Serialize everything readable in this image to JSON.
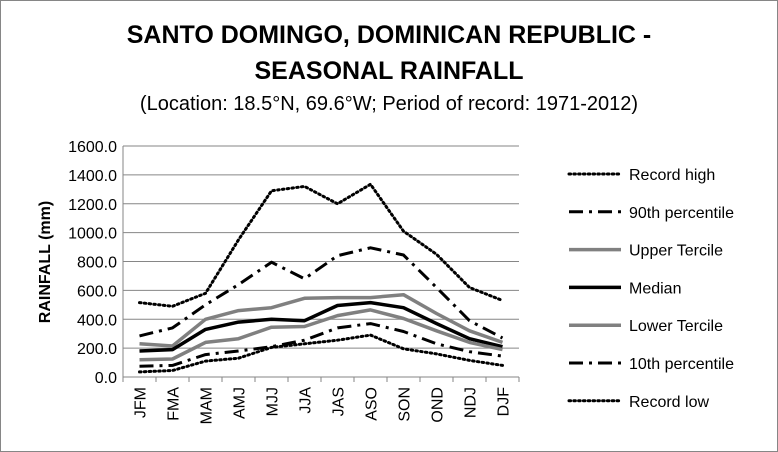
{
  "chart_data": {
    "type": "line",
    "title": "SANTO DOMINGO, DOMINICAN REPUBLIC - SEASONAL RAINFALL",
    "title_lines": [
      "SANTO DOMINGO, DOMINICAN REPUBLIC -",
      "SEASONAL RAINFALL"
    ],
    "subtitle": "(Location: 18.5°N, 69.6°W; Period of record: 1971-2012)",
    "xlabel": "",
    "ylabel": "RAINFALL (mm)",
    "ylim": [
      0,
      1600
    ],
    "y_ticks": [
      "0.0",
      "200.0",
      "400.0",
      "600.0",
      "800.0",
      "1000.0",
      "1200.0",
      "1400.0",
      "1600.0"
    ],
    "grid": true,
    "legend_position": "right",
    "categories": [
      "JFM",
      "FMA",
      "MAM",
      "AMJ",
      "MJJ",
      "JJA",
      "JAS",
      "ASO",
      "SON",
      "OND",
      "NDJ",
      "DJF"
    ],
    "series": [
      {
        "name": "Record high",
        "color": "#000000",
        "style": "dotted",
        "values": [
          515,
          490,
          580,
          950,
          1290,
          1320,
          1200,
          1335,
          1010,
          850,
          620,
          530
        ]
      },
      {
        "name": "90th percentile",
        "color": "#000000",
        "style": "dashdot",
        "values": [
          285,
          340,
          500,
          640,
          795,
          680,
          840,
          895,
          845,
          620,
          390,
          270
        ]
      },
      {
        "name": "Upper Tercile",
        "color": "#808080",
        "style": "solid",
        "values": [
          230,
          215,
          400,
          460,
          480,
          545,
          550,
          550,
          570,
          440,
          320,
          240
        ]
      },
      {
        "name": "Median",
        "color": "#000000",
        "style": "solid",
        "values": [
          180,
          190,
          330,
          380,
          400,
          390,
          495,
          515,
          480,
          370,
          265,
          210
        ]
      },
      {
        "name": "Lower Tercile",
        "color": "#808080",
        "style": "solid",
        "values": [
          120,
          125,
          240,
          265,
          345,
          350,
          425,
          465,
          405,
          320,
          240,
          190
        ]
      },
      {
        "name": "10th percentile",
        "color": "#000000",
        "style": "dashdot",
        "values": [
          75,
          80,
          155,
          180,
          210,
          255,
          340,
          370,
          315,
          230,
          175,
          145
        ]
      },
      {
        "name": "Record low",
        "color": "#000000",
        "style": "dotted",
        "values": [
          35,
          45,
          110,
          130,
          205,
          230,
          255,
          290,
          195,
          160,
          115,
          80
        ]
      }
    ]
  }
}
